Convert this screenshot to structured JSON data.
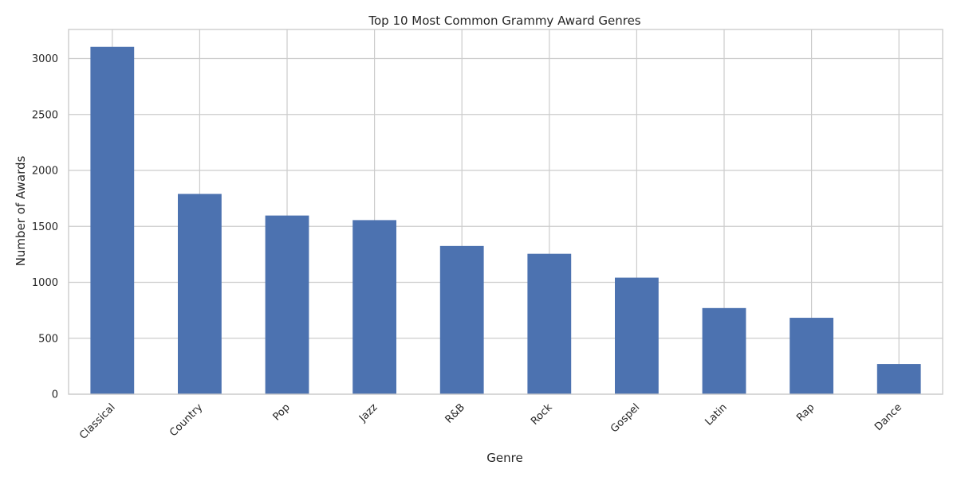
{
  "chart_data": {
    "type": "bar",
    "title": "Top 10 Most Common Grammy Award Genres",
    "xlabel": "Genre",
    "ylabel": "Number of Awards",
    "categories": [
      "Classical",
      "Country",
      "Pop",
      "Jazz",
      "R&B",
      "Rock",
      "Gospel",
      "Latin",
      "Rap",
      "Dance"
    ],
    "values": [
      3105,
      1790,
      1597,
      1556,
      1325,
      1255,
      1042,
      770,
      683,
      270
    ],
    "ylim": [
      0,
      3260
    ],
    "yticks": [
      0,
      500,
      1000,
      1500,
      2000,
      2500,
      3000
    ],
    "grid": true,
    "bar_color": "#4c72b0",
    "grid_color": "#cccccc",
    "spine_color": "#cccccc"
  }
}
